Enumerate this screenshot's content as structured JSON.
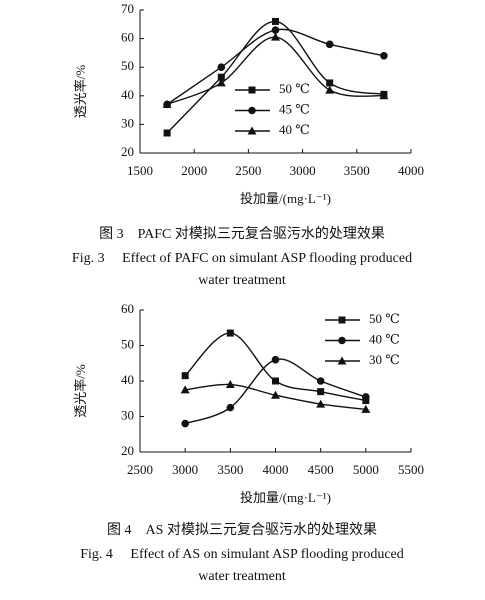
{
  "chart_data": [
    {
      "type": "line",
      "y_label": "透光率/%",
      "x_label": "投加量/(mg·L⁻¹)",
      "caption_cn": "图 3　PAFC 对模拟三元复合驱污水的处理效果",
      "caption_en": [
        "Fig. 3　 Effect of PAFC on simulant ASP flooding produced",
        "water treatment"
      ],
      "x": [
        1750,
        2250,
        2750,
        3250,
        3750
      ],
      "xlim": [
        1500,
        4000
      ],
      "xticks": [
        1500,
        2000,
        2500,
        3000,
        3500,
        4000
      ],
      "ylim": [
        20,
        70
      ],
      "yticks": [
        20,
        30,
        40,
        50,
        60,
        70
      ],
      "series": [
        {
          "name": "50 ℃",
          "color": "#111111",
          "marker": "square",
          "values": [
            27,
            46.5,
            66,
            44.5,
            40.5
          ]
        },
        {
          "name": "45 ℃",
          "color": "#111111",
          "marker": "circle",
          "values": [
            37,
            50,
            63,
            58,
            54
          ]
        },
        {
          "name": "40 ℃",
          "color": "#111111",
          "marker": "triangle",
          "values": [
            37,
            44.5,
            60.5,
            42,
            40
          ]
        }
      ]
    },
    {
      "type": "line",
      "y_label": "透光率/%",
      "x_label": "投加量/(mg·L⁻¹)",
      "caption_cn": "图 4　AS 对模拟三元复合驱污水的处理效果",
      "caption_en": [
        "Fig. 4　 Effect of AS on simulant ASP flooding produced",
        "water treatment"
      ],
      "x": [
        3000,
        3500,
        4000,
        4500,
        5000
      ],
      "xlim": [
        2500,
        5500
      ],
      "xticks": [
        2500,
        3000,
        3500,
        4000,
        4500,
        5000,
        5500
      ],
      "ylim": [
        20,
        60
      ],
      "yticks": [
        20,
        30,
        40,
        50,
        60
      ],
      "series": [
        {
          "name": "50 ℃",
          "color": "#111111",
          "marker": "square",
          "values": [
            41.5,
            53.5,
            40,
            37,
            34.5
          ]
        },
        {
          "name": "40 ℃",
          "color": "#111111",
          "marker": "circle",
          "values": [
            28,
            32.5,
            46,
            40,
            35.5
          ]
        },
        {
          "name": "30 ℃",
          "color": "#111111",
          "marker": "triangle",
          "values": [
            37.5,
            39,
            36,
            33.5,
            32
          ]
        }
      ]
    }
  ]
}
